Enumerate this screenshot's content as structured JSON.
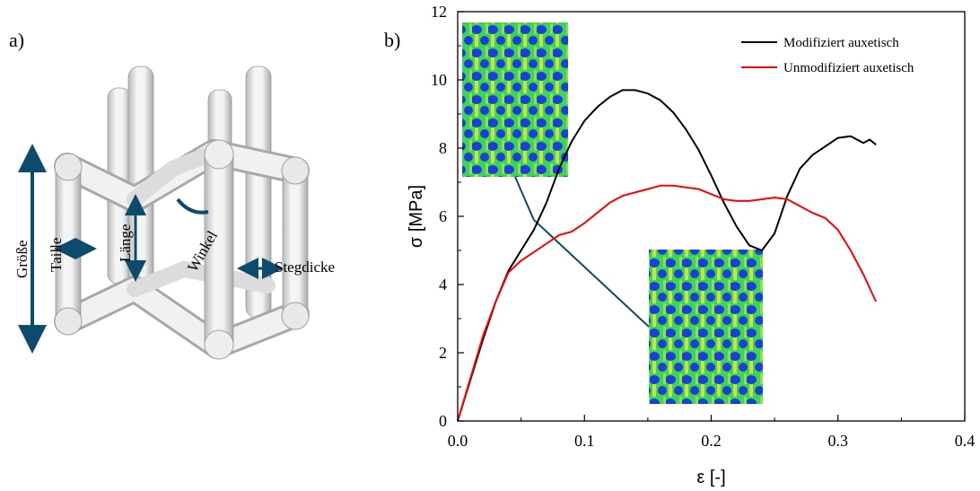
{
  "panel_a": {
    "label": "a)",
    "annotations": {
      "size": "Größe",
      "waist": "Taille",
      "length": "Länge",
      "angle": "Winkel",
      "strut_thickness": "Stegdicke"
    }
  },
  "panel_b": {
    "label": "b)"
  },
  "colors": {
    "modified": "#000000",
    "unmodified": "#ff0000",
    "annotation": "#0d4a6e",
    "fem_blue": "#1b3fd8",
    "fem_green": "#3ed45a"
  },
  "chart_data": {
    "type": "line",
    "title": "",
    "xlabel": "ε [-]",
    "ylabel": "σ [MPa]",
    "xlim": [
      0.0,
      0.4
    ],
    "ylim": [
      0,
      12
    ],
    "xticks": [
      0.0,
      0.1,
      0.2,
      0.3,
      0.4
    ],
    "xtick_labels": [
      "0.0",
      "0.1",
      "0.2",
      "0.3",
      "0.4"
    ],
    "yticks": [
      0,
      2,
      4,
      6,
      8,
      10,
      12
    ],
    "ytick_labels": [
      "0",
      "2",
      "4",
      "6",
      "8",
      "10",
      "12"
    ],
    "grid": false,
    "legend_position": "top-right",
    "series": [
      {
        "name": "Modifiziert auxetisch",
        "color_key": "modified",
        "x": [
          0.0,
          0.01,
          0.02,
          0.03,
          0.04,
          0.05,
          0.06,
          0.07,
          0.08,
          0.09,
          0.1,
          0.11,
          0.12,
          0.13,
          0.14,
          0.15,
          0.16,
          0.17,
          0.18,
          0.19,
          0.2,
          0.21,
          0.22,
          0.23,
          0.24,
          0.25,
          0.26,
          0.27,
          0.28,
          0.29,
          0.3,
          0.31,
          0.32,
          0.325,
          0.33
        ],
        "y": [
          0.0,
          1.2,
          2.4,
          3.5,
          4.4,
          5.0,
          5.6,
          6.4,
          7.4,
          8.2,
          8.8,
          9.2,
          9.5,
          9.7,
          9.7,
          9.6,
          9.4,
          9.05,
          8.55,
          7.95,
          7.2,
          6.4,
          5.7,
          5.15,
          5.0,
          5.5,
          6.6,
          7.4,
          7.8,
          8.05,
          8.3,
          8.35,
          8.15,
          8.25,
          8.1
        ]
      },
      {
        "name": "Unmodifiziert auxetisch",
        "color_key": "unmodified",
        "x": [
          0.0,
          0.01,
          0.02,
          0.03,
          0.04,
          0.05,
          0.06,
          0.07,
          0.08,
          0.09,
          0.1,
          0.11,
          0.12,
          0.13,
          0.14,
          0.15,
          0.16,
          0.17,
          0.18,
          0.19,
          0.2,
          0.21,
          0.22,
          0.23,
          0.24,
          0.25,
          0.26,
          0.27,
          0.28,
          0.29,
          0.3,
          0.31,
          0.32,
          0.33
        ],
        "y": [
          0.0,
          1.25,
          2.5,
          3.5,
          4.35,
          4.7,
          4.95,
          5.2,
          5.45,
          5.55,
          5.8,
          6.1,
          6.4,
          6.6,
          6.7,
          6.8,
          6.9,
          6.9,
          6.85,
          6.8,
          6.65,
          6.5,
          6.45,
          6.45,
          6.5,
          6.55,
          6.5,
          6.3,
          6.1,
          5.95,
          5.6,
          5.0,
          4.3,
          3.5
        ]
      }
    ],
    "insets": [
      {
        "name": "fem-inset-top",
        "anchor_x": 0.06,
        "anchor_y": 5.9
      },
      {
        "name": "fem-inset-bottom",
        "anchor_x": 0.055,
        "anchor_y": 5.8
      }
    ]
  }
}
